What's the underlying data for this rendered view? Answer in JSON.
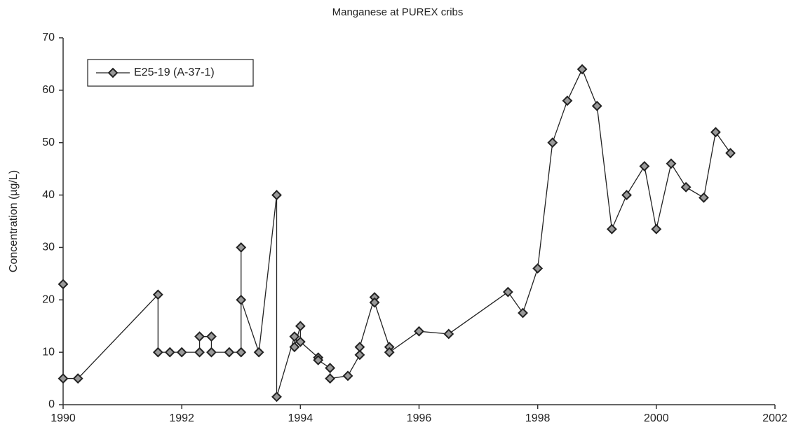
{
  "chart_data": {
    "type": "line",
    "title": "Manganese at PUREX cribs",
    "ylabel": "Concentration (µg/L)",
    "x": [
      1990.0,
      1990.0,
      1990.25,
      1991.6,
      1991.6,
      1991.8,
      1992.0,
      1992.3,
      1992.3,
      1992.5,
      1992.5,
      1992.8,
      1993.0,
      1993.0,
      1993.0,
      1993.3,
      1993.6,
      1993.6,
      1993.9,
      1993.9,
      1994.0,
      1994.0,
      1994.3,
      1994.3,
      1994.5,
      1994.5,
      1994.8,
      1995.0,
      1995.0,
      1995.25,
      1995.25,
      1995.5,
      1995.5,
      1996.0,
      1996.5,
      1997.5,
      1997.75,
      1998.0,
      1998.25,
      1998.5,
      1998.75,
      1999.0,
      1999.25,
      1999.5,
      1999.8,
      2000.0,
      2000.25,
      2000.5,
      2000.8,
      2001.0,
      2001.25
    ],
    "series": [
      {
        "name": "E25-19 (A-37-1)",
        "color": "#222222",
        "values": [
          23,
          5,
          5,
          21,
          10,
          10,
          10,
          10,
          13,
          13,
          10,
          10,
          10,
          30,
          20,
          10,
          40,
          1.5,
          13,
          11,
          15,
          12,
          9,
          8.5,
          7,
          5,
          5.5,
          9.5,
          11,
          20.5,
          19.5,
          11,
          10,
          14,
          13.5,
          21.5,
          17.5,
          26,
          50,
          58,
          64,
          57,
          33.5,
          40,
          45.5,
          33.5,
          46,
          41.5,
          39.5,
          52,
          48
        ]
      }
    ],
    "xlim": [
      1990,
      2002
    ],
    "xticks": [
      1990,
      1992,
      1994,
      1996,
      1998,
      2000,
      2002
    ],
    "ylim": [
      0,
      70
    ],
    "yticks": [
      0,
      10,
      20,
      30,
      40,
      50,
      60,
      70
    ],
    "grid": false,
    "legend": "upper left"
  }
}
